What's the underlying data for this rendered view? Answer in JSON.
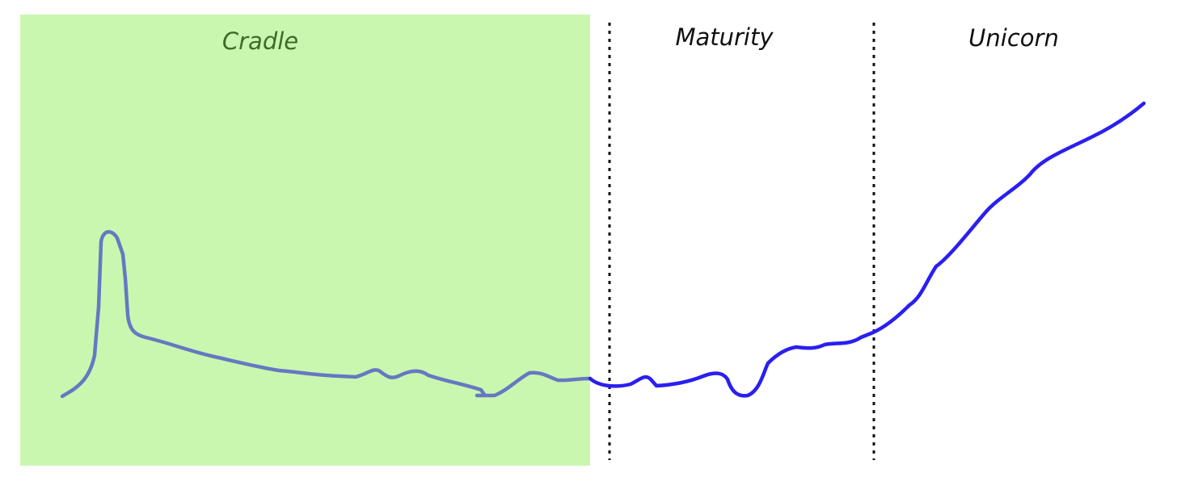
{
  "regions": [
    {
      "label": "Cradle"
    },
    {
      "label": "Maturity"
    },
    {
      "label": "Unicorn"
    }
  ]
}
